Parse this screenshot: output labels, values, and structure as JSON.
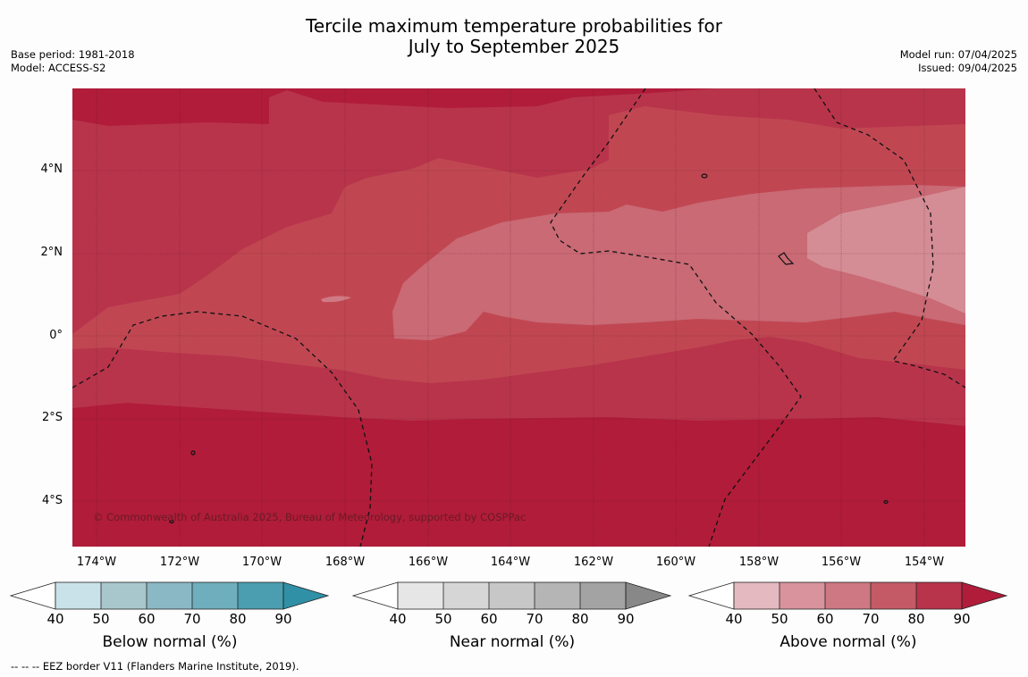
{
  "title": {
    "line1": "Tercile maximum temperature probabilities for",
    "line2": "July to September 2025"
  },
  "meta": {
    "base_period": "Base period: 1981-2018",
    "model": "Model: ACCESS-S2",
    "model_run": "Model run: 07/04/2025",
    "issued": "Issued: 09/04/2025"
  },
  "map": {
    "lat_labels": [
      "4°N",
      "2°N",
      "0°",
      "2°S",
      "4°S"
    ],
    "lon_labels": [
      "174°W",
      "172°W",
      "170°W",
      "168°W",
      "166°W",
      "164°W",
      "162°W",
      "160°W",
      "158°W",
      "156°W",
      "154°W"
    ],
    "copyright": "© Commonwealth of Australia 2025, Bureau of Meteorology, supported by COSPPac",
    "lat_range": [
      -5.2,
      5.9
    ],
    "lon_range": [
      -174.6,
      -153
    ]
  },
  "colorbars": [
    {
      "title": "Below normal (%)",
      "ticks": [
        "40",
        "50",
        "60",
        "70",
        "80",
        "90"
      ],
      "colors": [
        "#ffffff",
        "#c9e1e8",
        "#a8c7cd",
        "#8bb8c5",
        "#6eaebd",
        "#4a9eb0",
        "#3090a5"
      ]
    },
    {
      "title": "Near normal (%)",
      "ticks": [
        "40",
        "50",
        "60",
        "70",
        "80",
        "90"
      ],
      "colors": [
        "#ffffff",
        "#e6e6e6",
        "#d6d6d6",
        "#c7c7c7",
        "#b5b5b5",
        "#a3a3a3",
        "#888888"
      ]
    },
    {
      "title": "Above normal (%)",
      "ticks": [
        "40",
        "50",
        "60",
        "70",
        "80",
        "90"
      ],
      "colors": [
        "#ffffff",
        "#e4b9bf",
        "#d8939c",
        "#cd7882",
        "#c45a66",
        "#b8344b",
        "#b01c3a"
      ]
    }
  ],
  "footnote": "--  --  -- EEZ border V11 (Flanders Marine Institute, 2019)."
}
